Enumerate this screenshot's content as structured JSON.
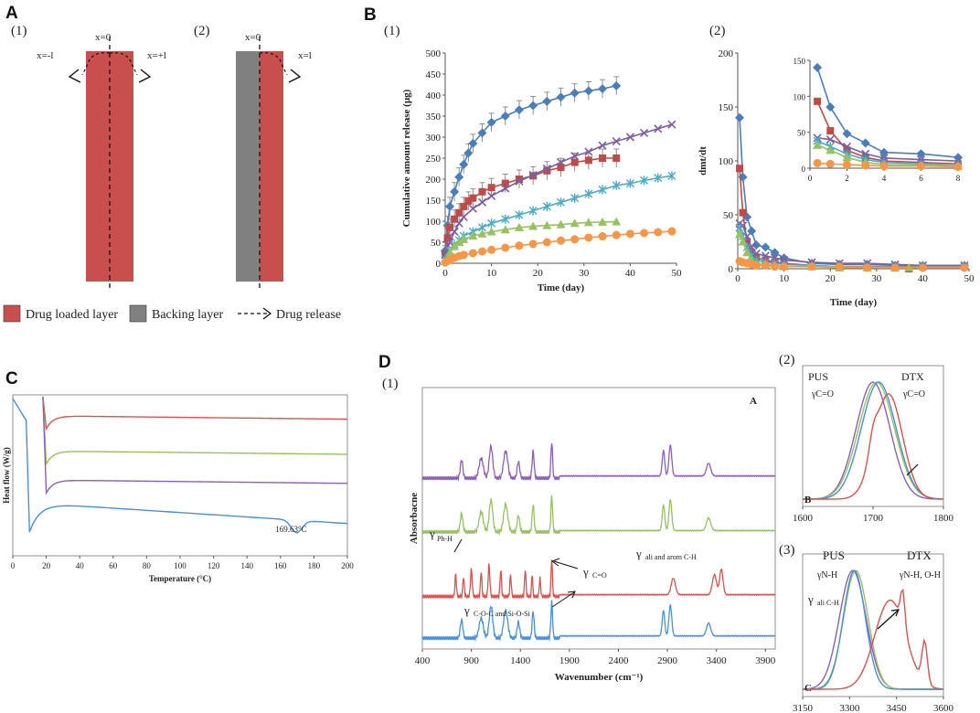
{
  "panels": {
    "A": {
      "letter": "A",
      "sub1": "(1)",
      "sub2": "(2)",
      "x0_label": "x=0",
      "xneg_label": "x=-l",
      "xpos_label": "x=+l",
      "x0_label_2": "x=0",
      "xl_label_2": "x=l",
      "legend": {
        "drug_layer": "Drug loaded layer",
        "backing_layer": "Backing layer",
        "drug_release": "Drug release"
      },
      "colors": {
        "drug": "#c94f4f",
        "backing": "#808080"
      }
    },
    "B": {
      "letter": "B",
      "sub1": "(1)",
      "sub2": "(2)"
    },
    "C": {
      "letter": "C"
    },
    "D": {
      "letter": "D",
      "sub1": "(1)",
      "sub2": "(2)",
      "sub3": "(3)",
      "corner_A": "A",
      "corner_B": "B",
      "corner_C": "C",
      "ann": {
        "ph": "γ",
        "ph_sub": "Ph-H",
        "co": "γ",
        "co_sub": "C=O",
        "ali_arom": "γ",
        "ali_arom_sub": "ali and arom C-H",
        "coc": "γ",
        "coc_sub": "C-O-C and Si-O-Si",
        "ali": "γ",
        "ali_sub": "ali C-H"
      },
      "ann2": {
        "pus": "PUS",
        "pus_g": "γC=O",
        "dtx": "DTX",
        "dtx_g": "γC=O"
      },
      "ann3": {
        "pus": "PUS",
        "pus_g": "γN-H",
        "dtx": "DTX",
        "dtx_g": "γN-H, O-H"
      }
    }
  },
  "series_colors": [
    "#4a7ebb",
    "#be4b48",
    "#7d5fa0",
    "#4bacc6",
    "#98c160",
    "#f79646"
  ],
  "chart_data": [
    {
      "id": "B1",
      "type": "line",
      "title": "",
      "xlabel": "Time (day)",
      "ylabel": "Cumulative amount release (µg)",
      "xlim": [
        0,
        50
      ],
      "ylim": [
        0,
        500
      ],
      "xticks": [
        0,
        10,
        20,
        30,
        40,
        50
      ],
      "yticks": [
        0,
        50,
        100,
        150,
        200,
        250,
        300,
        350,
        400,
        450,
        500
      ],
      "series": [
        {
          "name": "diamond",
          "marker": "diamond",
          "color": "#4a7ebb",
          "x": [
            0,
            0.5,
            1,
            2,
            3,
            4,
            5,
            6,
            8,
            10,
            13,
            16,
            19,
            22,
            25,
            28,
            31,
            34,
            37
          ],
          "y": [
            30,
            90,
            135,
            170,
            205,
            235,
            262,
            285,
            310,
            335,
            350,
            365,
            375,
            385,
            395,
            405,
            410,
            415,
            422
          ]
        },
        {
          "name": "square",
          "marker": "square",
          "color": "#be4b48",
          "x": [
            0,
            0.5,
            1,
            2,
            3,
            4,
            5,
            6,
            8,
            10,
            13,
            16,
            19,
            22,
            25,
            28,
            31,
            34,
            37
          ],
          "y": [
            20,
            60,
            85,
            105,
            120,
            135,
            148,
            155,
            170,
            180,
            190,
            200,
            208,
            220,
            228,
            240,
            245,
            250,
            250
          ]
        },
        {
          "name": "cross",
          "marker": "x",
          "color": "#7d5fa0",
          "x": [
            0,
            1,
            2,
            3,
            4,
            6,
            8,
            10,
            13,
            16,
            19,
            22,
            25,
            28,
            31,
            34,
            37,
            40,
            43,
            46,
            49
          ],
          "y": [
            20,
            50,
            75,
            95,
            110,
            130,
            145,
            160,
            178,
            195,
            210,
            225,
            240,
            255,
            265,
            280,
            290,
            300,
            310,
            320,
            330
          ]
        },
        {
          "name": "star",
          "marker": "star",
          "color": "#4bacc6",
          "x": [
            0,
            1,
            2,
            3,
            4,
            6,
            8,
            10,
            13,
            16,
            19,
            22,
            25,
            28,
            31,
            34,
            37,
            40,
            43,
            46,
            49
          ],
          "y": [
            10,
            30,
            45,
            55,
            65,
            75,
            85,
            95,
            105,
            115,
            125,
            135,
            145,
            155,
            165,
            175,
            185,
            190,
            197,
            203,
            208
          ]
        },
        {
          "name": "triangle",
          "marker": "triangle",
          "color": "#98c160",
          "x": [
            0,
            1,
            2,
            3,
            4,
            6,
            8,
            10,
            13,
            16,
            19,
            22,
            25,
            28,
            31,
            34,
            37
          ],
          "y": [
            5,
            25,
            40,
            50,
            57,
            65,
            70,
            75,
            80,
            85,
            88,
            90,
            92,
            95,
            97,
            98,
            99
          ]
        },
        {
          "name": "circle",
          "marker": "circle",
          "color": "#f79646",
          "x": [
            0,
            1,
            2,
            3,
            4,
            6,
            8,
            10,
            13,
            16,
            19,
            22,
            25,
            28,
            31,
            34,
            37,
            40,
            43,
            46,
            49
          ],
          "y": [
            2,
            8,
            13,
            17,
            20,
            24,
            28,
            32,
            37,
            42,
            46,
            50,
            54,
            57,
            61,
            64,
            67,
            70,
            72,
            74,
            76
          ]
        }
      ]
    },
    {
      "id": "B2",
      "type": "line",
      "title": "",
      "xlabel": "Time (day)",
      "ylabel": "dmt/dt",
      "xlim": [
        0,
        50
      ],
      "ylim": [
        0,
        200
      ],
      "xticks": [
        0,
        10,
        20,
        30,
        40,
        50
      ],
      "yticks": [
        0,
        50,
        100,
        150,
        200
      ],
      "inset": {
        "xlim": [
          0,
          8
        ],
        "ylim": [
          0,
          150
        ],
        "xticks": [
          0,
          2,
          4,
          6,
          8
        ],
        "yticks": [
          0,
          50,
          100,
          150
        ]
      },
      "series": [
        {
          "name": "diamond",
          "marker": "diamond",
          "color": "#4a7ebb",
          "x": [
            0.4,
            1.1,
            2,
            3,
            4,
            6,
            8,
            10,
            16,
            22,
            28,
            34,
            40,
            49
          ],
          "y": [
            140,
            85,
            48,
            35,
            22,
            20,
            15,
            10,
            5,
            4,
            4,
            3,
            3,
            3
          ]
        },
        {
          "name": "square",
          "marker": "square",
          "color": "#be4b48",
          "x": [
            0.4,
            1.1,
            2,
            3,
            4,
            6,
            8,
            10,
            16,
            22,
            28,
            34,
            37
          ],
          "y": [
            93,
            52,
            25,
            15,
            10,
            8,
            6,
            5,
            3,
            2,
            2,
            1,
            0
          ]
        },
        {
          "name": "cross",
          "marker": "x",
          "color": "#7d5fa0",
          "x": [
            0.4,
            1.1,
            2,
            3,
            4,
            6,
            8,
            10,
            16,
            22,
            28,
            34,
            40,
            49
          ],
          "y": [
            42,
            40,
            30,
            20,
            14,
            12,
            10,
            8,
            6,
            5,
            5,
            4,
            3,
            3
          ]
        },
        {
          "name": "star",
          "marker": "star",
          "color": "#4bacc6",
          "x": [
            0.4,
            1.1,
            2,
            3,
            4,
            6,
            8,
            10,
            16,
            22,
            28,
            34,
            40,
            49
          ],
          "y": [
            38,
            30,
            20,
            12,
            8,
            6,
            5,
            4,
            3,
            2,
            2,
            2,
            2,
            2
          ]
        },
        {
          "name": "triangle",
          "marker": "triangle",
          "color": "#98c160",
          "x": [
            0.4,
            1.1,
            2,
            3,
            4,
            6,
            8,
            10,
            16,
            22,
            28,
            34,
            37
          ],
          "y": [
            32,
            25,
            15,
            8,
            5,
            4,
            3,
            2,
            2,
            1,
            1,
            1,
            1
          ]
        },
        {
          "name": "circle",
          "marker": "circle",
          "color": "#f79646",
          "x": [
            0.4,
            1.1,
            2,
            3,
            4,
            6,
            8,
            10,
            16,
            22,
            28,
            34,
            40,
            49
          ],
          "y": [
            7,
            6,
            5,
            4,
            3,
            3,
            2,
            2,
            2,
            2,
            1,
            1,
            1,
            1
          ]
        }
      ]
    },
    {
      "id": "C",
      "type": "line",
      "xlabel": "Temperature (°C)",
      "ylabel": "Heat flow (W/g)",
      "xlim": [
        0,
        200
      ],
      "xticks": [
        0,
        20,
        40,
        60,
        80,
        100,
        120,
        140,
        160,
        180,
        200
      ],
      "annotation": "169.63°C",
      "series": [
        {
          "name": "red",
          "color": "#d9534f",
          "offset": 0.02
        },
        {
          "name": "green",
          "color": "#98c160",
          "offset": 0.25
        },
        {
          "name": "purple",
          "color": "#8e5fb8",
          "offset": 0.44
        },
        {
          "name": "blue",
          "color": "#4a90d9",
          "offset": 0.6,
          "peak_x": 169.63
        }
      ]
    },
    {
      "id": "D1",
      "type": "line",
      "xlabel": "Wavenumber (cm⁻¹)",
      "ylabel": "Absorbacne",
      "xlim": [
        400,
        4000
      ],
      "xticks": [
        400,
        900,
        1400,
        1900,
        2400,
        2900,
        3400,
        3900
      ],
      "series": [
        {
          "name": "purple",
          "color": "#8e5fb8"
        },
        {
          "name": "green",
          "color": "#98c160"
        },
        {
          "name": "red",
          "color": "#d9534f"
        },
        {
          "name": "blue",
          "color": "#4a90d9"
        }
      ]
    },
    {
      "id": "D2",
      "type": "line",
      "xlim": [
        1600,
        1800
      ],
      "xticks": [
        1600,
        1700,
        1800
      ],
      "series": [
        {
          "name": "PUS",
          "color": "#8e5fb8"
        },
        {
          "name": "green",
          "color": "#98c160"
        },
        {
          "name": "blue",
          "color": "#4a90d9"
        },
        {
          "name": "DTX",
          "color": "#d9534f"
        }
      ]
    },
    {
      "id": "D3",
      "type": "line",
      "xlim": [
        3150,
        3600
      ],
      "xticks": [
        3150,
        3300,
        3450,
        3600
      ],
      "series": [
        {
          "name": "PUS",
          "color": "#8e5fb8"
        },
        {
          "name": "green",
          "color": "#98c160"
        },
        {
          "name": "blue",
          "color": "#4a90d9"
        },
        {
          "name": "DTX",
          "color": "#d9534f"
        }
      ]
    }
  ]
}
